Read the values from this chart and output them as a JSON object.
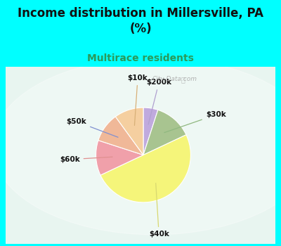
{
  "title": "Income distribution in Millersville, PA\n(%)",
  "subtitle": "Multirace residents",
  "title_fontsize": 12,
  "subtitle_fontsize": 10,
  "title_color": "#111111",
  "subtitle_color": "#2a9a5a",
  "bg_color": "#00ffff",
  "labels": [
    "$200k",
    "$30k",
    "$40k",
    "$60k",
    "$50k",
    "$10k"
  ],
  "values": [
    5,
    13,
    50,
    12,
    10,
    10
  ],
  "colors": [
    "#c0aade",
    "#a8c490",
    "#f5f57a",
    "#f0a0aa",
    "#f0b898",
    "#f5cfa0"
  ],
  "line_colors": [
    "#b0a0d0",
    "#90b880",
    "#d8d870",
    "#e09090",
    "#8090d0",
    "#d8b078"
  ],
  "startangle": 90,
  "watermark": "City-Data.com"
}
